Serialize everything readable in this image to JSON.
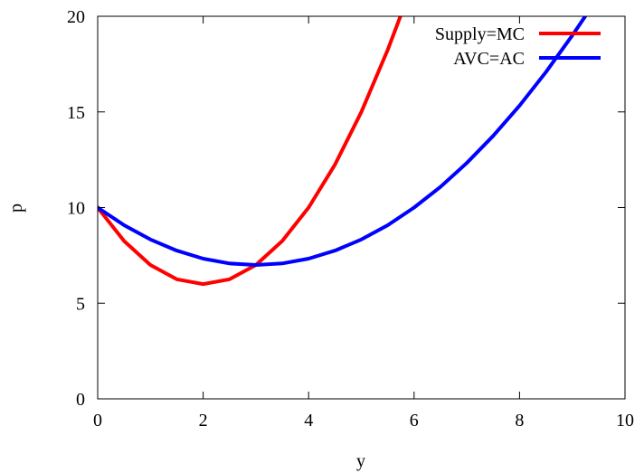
{
  "chart_data": {
    "type": "line",
    "title": "",
    "xlabel": "y",
    "ylabel": "p",
    "xlim": [
      0,
      10
    ],
    "ylim": [
      0,
      20
    ],
    "grid": false,
    "legend_position": "top-right",
    "x_ticks": [
      "0",
      "2",
      "4",
      "6",
      "8",
      "10"
    ],
    "y_ticks": [
      "0",
      "5",
      "10",
      "15",
      "20"
    ],
    "series": [
      {
        "name": "Supply=MC",
        "color": "#ff0000",
        "x": [
          0,
          0.5,
          1,
          1.5,
          2,
          2.5,
          3,
          3.5,
          4,
          4.5,
          5,
          5.5,
          5.75
        ],
        "y": [
          10,
          8.25,
          7,
          6.25,
          6,
          6.25,
          7,
          8.25,
          10,
          12.25,
          15,
          18.25,
          20.06
        ]
      },
      {
        "name": "AVC=AC",
        "color": "#0000ff",
        "x": [
          0,
          0.5,
          1,
          1.5,
          2,
          2.5,
          3,
          3.5,
          4,
          4.5,
          5,
          5.5,
          6,
          6.5,
          7,
          7.5,
          8,
          8.5,
          9,
          9.25
        ],
        "y": [
          10,
          9.08,
          8.33,
          7.75,
          7.33,
          7.08,
          7,
          7.08,
          7.33,
          7.75,
          8.33,
          9.08,
          10,
          11.08,
          12.33,
          13.75,
          15.33,
          17.08,
          19,
          20.02
        ]
      }
    ]
  }
}
